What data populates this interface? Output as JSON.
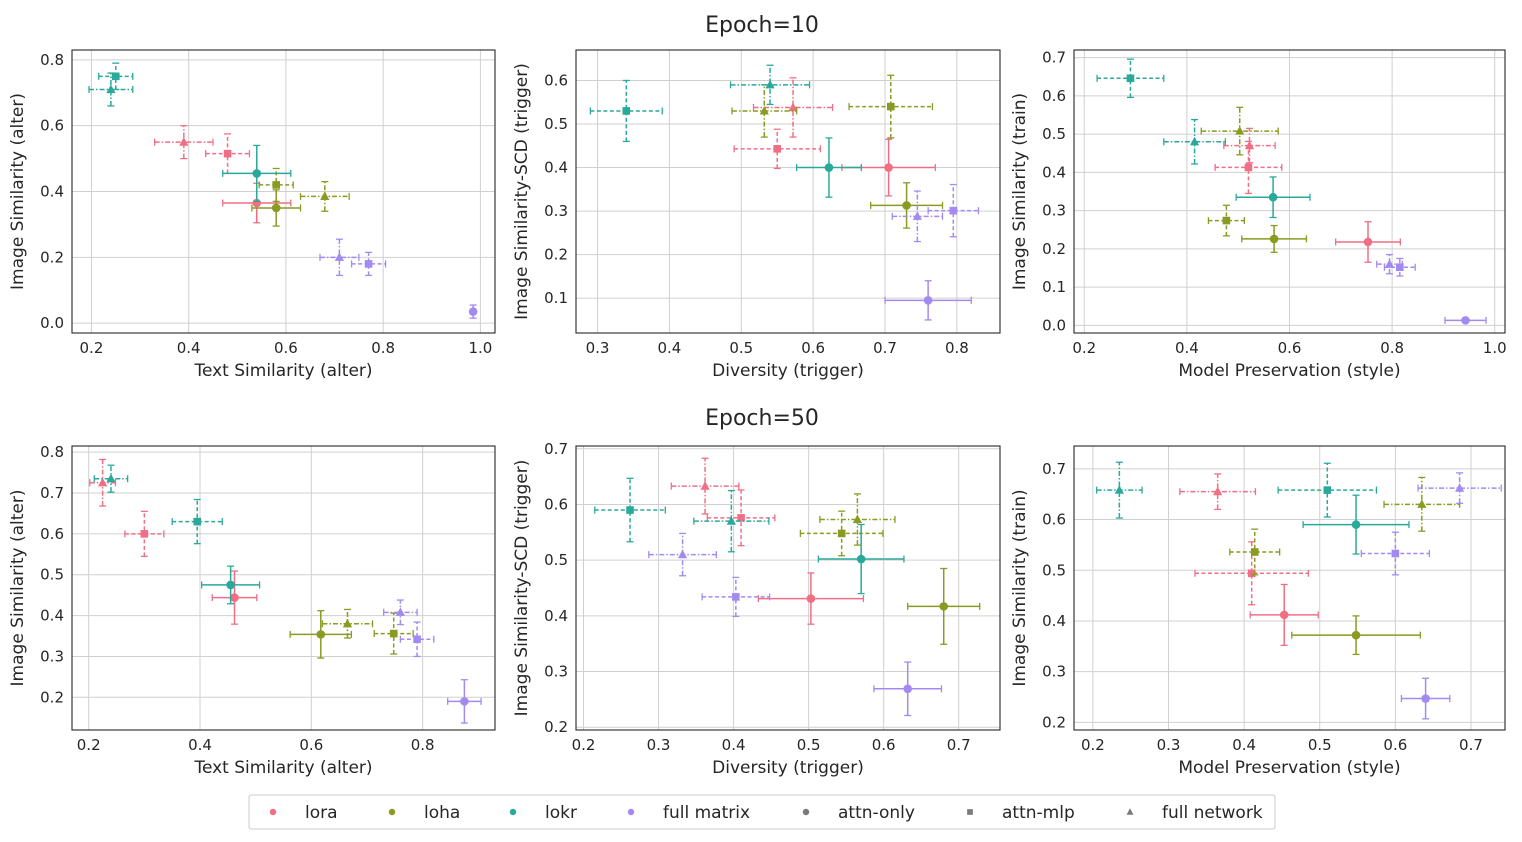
{
  "figure": {
    "row_titles": [
      "Epoch=10",
      "Epoch=50"
    ],
    "legend": [
      {
        "label": "lora",
        "kind": "color",
        "color": "#f06f85"
      },
      {
        "label": "loha",
        "kind": "color",
        "color": "#8a9a22"
      },
      {
        "label": "lokr",
        "kind": "color",
        "color": "#2aa99b"
      },
      {
        "label": "full matrix",
        "kind": "color",
        "color": "#a38af2"
      },
      {
        "label": "attn-only",
        "kind": "marker",
        "marker": "circle"
      },
      {
        "label": "attn-mlp",
        "kind": "marker",
        "marker": "square"
      },
      {
        "label": "full network",
        "kind": "marker",
        "marker": "triangle"
      }
    ]
  },
  "colors": {
    "lora": "#f06f85",
    "loha": "#8a9a22",
    "lokr": "#2aa99b",
    "full matrix": "#a38af2",
    "grid": "#d0d0d0",
    "spine": "#262626"
  },
  "chart_data": [
    {
      "type": "scatter",
      "row": 0,
      "col": 0,
      "title": "Epoch=10",
      "xlabel": "Text Similarity (alter)",
      "ylabel": "Image Similarity (alter)",
      "xlim": [
        0.16,
        1.03
      ],
      "ylim": [
        -0.03,
        0.83
      ],
      "xticks": [
        "0.2",
        "0.4",
        "0.6",
        "0.8",
        "1.0"
      ],
      "yticks": [
        "0.0",
        "0.2",
        "0.4",
        "0.6",
        "0.8"
      ],
      "points": [
        {
          "method": "lora",
          "variant": "attn-only",
          "x": 0.54,
          "y": 0.365,
          "xerr": 0.07,
          "yerr": 0.06
        },
        {
          "method": "lora",
          "variant": "attn-mlp",
          "x": 0.48,
          "y": 0.515,
          "xerr": 0.045,
          "yerr": 0.06
        },
        {
          "method": "lora",
          "variant": "full network",
          "x": 0.39,
          "y": 0.55,
          "xerr": 0.06,
          "yerr": 0.05
        },
        {
          "method": "loha",
          "variant": "attn-only",
          "x": 0.58,
          "y": 0.35,
          "xerr": 0.05,
          "yerr": 0.055
        },
        {
          "method": "loha",
          "variant": "attn-mlp",
          "x": 0.58,
          "y": 0.42,
          "xerr": 0.035,
          "yerr": 0.05
        },
        {
          "method": "loha",
          "variant": "full network",
          "x": 0.68,
          "y": 0.385,
          "xerr": 0.05,
          "yerr": 0.045
        },
        {
          "method": "lokr",
          "variant": "attn-only",
          "x": 0.54,
          "y": 0.455,
          "xerr": 0.07,
          "yerr": 0.085
        },
        {
          "method": "lokr",
          "variant": "attn-mlp",
          "x": 0.25,
          "y": 0.75,
          "xerr": 0.035,
          "yerr": 0.04
        },
        {
          "method": "lokr",
          "variant": "full network",
          "x": 0.24,
          "y": 0.71,
          "xerr": 0.045,
          "yerr": 0.05
        },
        {
          "method": "full matrix",
          "variant": "attn-only",
          "x": 0.985,
          "y": 0.035,
          "xerr": 0.0,
          "yerr": 0.02
        },
        {
          "method": "full matrix",
          "variant": "attn-mlp",
          "x": 0.77,
          "y": 0.18,
          "xerr": 0.035,
          "yerr": 0.035
        },
        {
          "method": "full matrix",
          "variant": "full network",
          "x": 0.71,
          "y": 0.2,
          "xerr": 0.04,
          "yerr": 0.055
        }
      ]
    },
    {
      "type": "scatter",
      "row": 0,
      "col": 1,
      "title": "Epoch=10",
      "xlabel": "Diversity (trigger)",
      "ylabel": "Image Similarity-SCD (trigger)",
      "xlim": [
        0.27,
        0.86
      ],
      "ylim": [
        0.02,
        0.67
      ],
      "xticks": [
        "0.3",
        "0.4",
        "0.5",
        "0.6",
        "0.7",
        "0.8"
      ],
      "yticks": [
        "0.1",
        "0.2",
        "0.3",
        "0.4",
        "0.5",
        "0.6"
      ],
      "points": [
        {
          "method": "lora",
          "variant": "attn-only",
          "x": 0.705,
          "y": 0.4,
          "xerr": 0.065,
          "yerr": 0.065
        },
        {
          "method": "lora",
          "variant": "attn-mlp",
          "x": 0.55,
          "y": 0.443,
          "xerr": 0.06,
          "yerr": 0.045
        },
        {
          "method": "lora",
          "variant": "full network",
          "x": 0.572,
          "y": 0.538,
          "xerr": 0.055,
          "yerr": 0.068
        },
        {
          "method": "loha",
          "variant": "attn-only",
          "x": 0.73,
          "y": 0.313,
          "xerr": 0.05,
          "yerr": 0.052
        },
        {
          "method": "loha",
          "variant": "attn-mlp",
          "x": 0.708,
          "y": 0.54,
          "xerr": 0.058,
          "yerr": 0.072
        },
        {
          "method": "loha",
          "variant": "full network",
          "x": 0.532,
          "y": 0.53,
          "xerr": 0.045,
          "yerr": 0.06
        },
        {
          "method": "lokr",
          "variant": "attn-only",
          "x": 0.622,
          "y": 0.4,
          "xerr": 0.045,
          "yerr": 0.068
        },
        {
          "method": "lokr",
          "variant": "attn-mlp",
          "x": 0.34,
          "y": 0.53,
          "xerr": 0.05,
          "yerr": 0.07
        },
        {
          "method": "lokr",
          "variant": "full network",
          "x": 0.54,
          "y": 0.59,
          "xerr": 0.055,
          "yerr": 0.045
        },
        {
          "method": "full matrix",
          "variant": "attn-only",
          "x": 0.76,
          "y": 0.095,
          "xerr": 0.06,
          "yerr": 0.045
        },
        {
          "method": "full matrix",
          "variant": "attn-mlp",
          "x": 0.795,
          "y": 0.301,
          "xerr": 0.035,
          "yerr": 0.06
        },
        {
          "method": "full matrix",
          "variant": "full network",
          "x": 0.745,
          "y": 0.288,
          "xerr": 0.035,
          "yerr": 0.058
        }
      ]
    },
    {
      "type": "scatter",
      "row": 0,
      "col": 2,
      "title": "Epoch=10",
      "xlabel": "Model Preservation (style)",
      "ylabel": "Image Similarity (train)",
      "xlim": [
        0.18,
        1.02
      ],
      "ylim": [
        -0.02,
        0.72
      ],
      "xticks": [
        "0.2",
        "0.4",
        "0.6",
        "0.8",
        "1.0"
      ],
      "yticks": [
        "0.0",
        "0.1",
        "0.2",
        "0.3",
        "0.4",
        "0.5",
        "0.6",
        "0.7"
      ],
      "points": [
        {
          "method": "lora",
          "variant": "attn-only",
          "x": 0.753,
          "y": 0.218,
          "xerr": 0.063,
          "yerr": 0.053
        },
        {
          "method": "lora",
          "variant": "attn-mlp",
          "x": 0.52,
          "y": 0.413,
          "xerr": 0.065,
          "yerr": 0.068
        },
        {
          "method": "lora",
          "variant": "full network",
          "x": 0.522,
          "y": 0.47,
          "xerr": 0.05,
          "yerr": 0.045
        },
        {
          "method": "loha",
          "variant": "attn-only",
          "x": 0.57,
          "y": 0.226,
          "xerr": 0.063,
          "yerr": 0.035
        },
        {
          "method": "loha",
          "variant": "attn-mlp",
          "x": 0.477,
          "y": 0.274,
          "xerr": 0.035,
          "yerr": 0.04
        },
        {
          "method": "loha",
          "variant": "full network",
          "x": 0.503,
          "y": 0.508,
          "xerr": 0.075,
          "yerr": 0.062
        },
        {
          "method": "lokr",
          "variant": "attn-only",
          "x": 0.568,
          "y": 0.335,
          "xerr": 0.072,
          "yerr": 0.053
        },
        {
          "method": "lokr",
          "variant": "attn-mlp",
          "x": 0.29,
          "y": 0.646,
          "xerr": 0.065,
          "yerr": 0.05
        },
        {
          "method": "lokr",
          "variant": "full network",
          "x": 0.415,
          "y": 0.48,
          "xerr": 0.06,
          "yerr": 0.058
        },
        {
          "method": "full matrix",
          "variant": "attn-only",
          "x": 0.943,
          "y": 0.013,
          "xerr": 0.04,
          "yerr": 0.0
        },
        {
          "method": "full matrix",
          "variant": "attn-mlp",
          "x": 0.815,
          "y": 0.152,
          "xerr": 0.03,
          "yerr": 0.023
        },
        {
          "method": "full matrix",
          "variant": "full network",
          "x": 0.795,
          "y": 0.16,
          "xerr": 0.025,
          "yerr": 0.025
        }
      ]
    },
    {
      "type": "scatter",
      "row": 1,
      "col": 0,
      "title": "Epoch=50",
      "xlabel": "Text Similarity (alter)",
      "ylabel": "Image Similarity (alter)",
      "xlim": [
        0.17,
        0.93
      ],
      "ylim": [
        0.12,
        0.815
      ],
      "xticks": [
        "0.2",
        "0.4",
        "0.6",
        "0.8"
      ],
      "yticks": [
        "0.2",
        "0.3",
        "0.4",
        "0.5",
        "0.6",
        "0.7",
        "0.8"
      ],
      "points": [
        {
          "method": "lora",
          "variant": "attn-only",
          "x": 0.462,
          "y": 0.444,
          "xerr": 0.04,
          "yerr": 0.065
        },
        {
          "method": "lora",
          "variant": "attn-mlp",
          "x": 0.3,
          "y": 0.6,
          "xerr": 0.035,
          "yerr": 0.055
        },
        {
          "method": "lora",
          "variant": "full network",
          "x": 0.225,
          "y": 0.725,
          "xerr": 0.023,
          "yerr": 0.057
        },
        {
          "method": "loha",
          "variant": "attn-only",
          "x": 0.617,
          "y": 0.354,
          "xerr": 0.055,
          "yerr": 0.058
        },
        {
          "method": "loha",
          "variant": "attn-mlp",
          "x": 0.748,
          "y": 0.356,
          "xerr": 0.035,
          "yerr": 0.05
        },
        {
          "method": "loha",
          "variant": "full network",
          "x": 0.665,
          "y": 0.38,
          "xerr": 0.045,
          "yerr": 0.035
        },
        {
          "method": "lokr",
          "variant": "attn-only",
          "x": 0.455,
          "y": 0.475,
          "xerr": 0.052,
          "yerr": 0.046
        },
        {
          "method": "lokr",
          "variant": "attn-mlp",
          "x": 0.395,
          "y": 0.63,
          "xerr": 0.045,
          "yerr": 0.054
        },
        {
          "method": "lokr",
          "variant": "full network",
          "x": 0.24,
          "y": 0.735,
          "xerr": 0.03,
          "yerr": 0.033
        },
        {
          "method": "full matrix",
          "variant": "attn-only",
          "x": 0.875,
          "y": 0.19,
          "xerr": 0.03,
          "yerr": 0.053
        },
        {
          "method": "full matrix",
          "variant": "attn-mlp",
          "x": 0.79,
          "y": 0.342,
          "xerr": 0.03,
          "yerr": 0.042
        },
        {
          "method": "full matrix",
          "variant": "full network",
          "x": 0.76,
          "y": 0.408,
          "xerr": 0.03,
          "yerr": 0.03
        }
      ]
    },
    {
      "type": "scatter",
      "row": 1,
      "col": 1,
      "title": "Epoch=50",
      "xlabel": "Diversity (trigger)",
      "ylabel": "Image Similarity-SCD (trigger)",
      "xlim": [
        0.19,
        0.755
      ],
      "ylim": [
        0.195,
        0.705
      ],
      "xticks": [
        "0.2",
        "0.3",
        "0.4",
        "0.5",
        "0.6",
        "0.7"
      ],
      "yticks": [
        "0.2",
        "0.3",
        "0.4",
        "0.5",
        "0.6",
        "0.7"
      ],
      "points": [
        {
          "method": "lora",
          "variant": "attn-only",
          "x": 0.503,
          "y": 0.431,
          "xerr": 0.07,
          "yerr": 0.046
        },
        {
          "method": "lora",
          "variant": "attn-mlp",
          "x": 0.41,
          "y": 0.576,
          "xerr": 0.045,
          "yerr": 0.05
        },
        {
          "method": "lora",
          "variant": "full network",
          "x": 0.362,
          "y": 0.633,
          "xerr": 0.045,
          "yerr": 0.05
        },
        {
          "method": "loha",
          "variant": "attn-only",
          "x": 0.68,
          "y": 0.417,
          "xerr": 0.048,
          "yerr": 0.068
        },
        {
          "method": "loha",
          "variant": "attn-mlp",
          "x": 0.544,
          "y": 0.548,
          "xerr": 0.055,
          "yerr": 0.04
        },
        {
          "method": "loha",
          "variant": "full network",
          "x": 0.565,
          "y": 0.573,
          "xerr": 0.05,
          "yerr": 0.046
        },
        {
          "method": "lokr",
          "variant": "attn-only",
          "x": 0.57,
          "y": 0.502,
          "xerr": 0.057,
          "yerr": 0.062
        },
        {
          "method": "lokr",
          "variant": "attn-mlp",
          "x": 0.262,
          "y": 0.59,
          "xerr": 0.047,
          "yerr": 0.057
        },
        {
          "method": "lokr",
          "variant": "full network",
          "x": 0.397,
          "y": 0.57,
          "xerr": 0.05,
          "yerr": 0.055
        },
        {
          "method": "full matrix",
          "variant": "attn-only",
          "x": 0.632,
          "y": 0.269,
          "xerr": 0.045,
          "yerr": 0.048
        },
        {
          "method": "full matrix",
          "variant": "attn-mlp",
          "x": 0.403,
          "y": 0.434,
          "xerr": 0.045,
          "yerr": 0.035
        },
        {
          "method": "full matrix",
          "variant": "full network",
          "x": 0.332,
          "y": 0.51,
          "xerr": 0.045,
          "yerr": 0.038
        }
      ]
    },
    {
      "type": "scatter",
      "row": 1,
      "col": 2,
      "title": "Epoch=50",
      "xlabel": "Model Preservation (style)",
      "ylabel": "Image Similarity (train)",
      "xlim": [
        0.175,
        0.745
      ],
      "ylim": [
        0.185,
        0.745
      ],
      "xticks": [
        "0.2",
        "0.3",
        "0.4",
        "0.5",
        "0.6",
        "0.7"
      ],
      "yticks": [
        "0.2",
        "0.3",
        "0.4",
        "0.5",
        "0.6",
        "0.7"
      ],
      "points": [
        {
          "method": "lora",
          "variant": "attn-only",
          "x": 0.453,
          "y": 0.412,
          "xerr": 0.045,
          "yerr": 0.06
        },
        {
          "method": "lora",
          "variant": "attn-mlp",
          "x": 0.41,
          "y": 0.494,
          "xerr": 0.075,
          "yerr": 0.062
        },
        {
          "method": "lora",
          "variant": "full network",
          "x": 0.365,
          "y": 0.655,
          "xerr": 0.05,
          "yerr": 0.035
        },
        {
          "method": "loha",
          "variant": "attn-only",
          "x": 0.548,
          "y": 0.372,
          "xerr": 0.085,
          "yerr": 0.038
        },
        {
          "method": "loha",
          "variant": "attn-mlp",
          "x": 0.414,
          "y": 0.536,
          "xerr": 0.033,
          "yerr": 0.045
        },
        {
          "method": "loha",
          "variant": "full network",
          "x": 0.635,
          "y": 0.63,
          "xerr": 0.05,
          "yerr": 0.053
        },
        {
          "method": "lokr",
          "variant": "attn-only",
          "x": 0.548,
          "y": 0.59,
          "xerr": 0.07,
          "yerr": 0.058
        },
        {
          "method": "lokr",
          "variant": "attn-mlp",
          "x": 0.51,
          "y": 0.658,
          "xerr": 0.065,
          "yerr": 0.053
        },
        {
          "method": "lokr",
          "variant": "full network",
          "x": 0.235,
          "y": 0.658,
          "xerr": 0.03,
          "yerr": 0.055
        },
        {
          "method": "full matrix",
          "variant": "attn-only",
          "x": 0.64,
          "y": 0.247,
          "xerr": 0.032,
          "yerr": 0.04
        },
        {
          "method": "full matrix",
          "variant": "attn-mlp",
          "x": 0.6,
          "y": 0.533,
          "xerr": 0.045,
          "yerr": 0.042
        },
        {
          "method": "full matrix",
          "variant": "full network",
          "x": 0.685,
          "y": 0.662,
          "xerr": 0.055,
          "yerr": 0.03
        }
      ]
    }
  ]
}
